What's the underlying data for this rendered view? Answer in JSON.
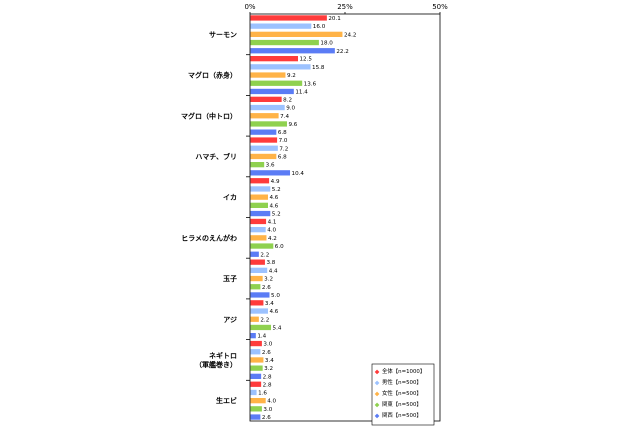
{
  "chart_data": {
    "type": "bar",
    "orientation": "horizontal",
    "categories": [
      "サーモン",
      "マグロ（赤身）",
      "マグロ（中トロ）",
      "ハマチ、ブリ",
      "イカ",
      "ヒラメのえんがわ",
      "玉子",
      "アジ",
      "ネギトロ\n（軍艦巻き）",
      "生エビ"
    ],
    "series": [
      {
        "name": "全体【n=1000】",
        "color": "#ff3b3b",
        "values": [
          20.1,
          12.5,
          8.2,
          7.0,
          4.9,
          4.1,
          3.8,
          3.4,
          3.0,
          2.8
        ]
      },
      {
        "name": "男性【n=500】",
        "color": "#9cc2ff",
        "values": [
          16.0,
          15.8,
          9.0,
          7.2,
          5.2,
          4.0,
          4.4,
          4.6,
          2.6,
          1.6
        ]
      },
      {
        "name": "女性【n=500】",
        "color": "#ffb347",
        "values": [
          24.2,
          9.2,
          7.4,
          6.8,
          4.6,
          4.2,
          3.2,
          2.2,
          3.4,
          4.0
        ]
      },
      {
        "name": "関東【n=500】",
        "color": "#8fd14f",
        "values": [
          18.0,
          13.6,
          9.6,
          3.6,
          4.6,
          6.0,
          2.6,
          5.4,
          3.2,
          3.0
        ]
      },
      {
        "name": "関西【n=500】",
        "color": "#5b7cf5",
        "values": [
          22.2,
          11.4,
          6.8,
          10.4,
          5.2,
          2.2,
          5.0,
          1.4,
          2.8,
          2.6
        ]
      }
    ],
    "xlim": [
      0,
      50
    ],
    "x_ticks": [
      "0%",
      "25%",
      "50%"
    ],
    "grid": false,
    "legend_position": "bottom-right"
  }
}
